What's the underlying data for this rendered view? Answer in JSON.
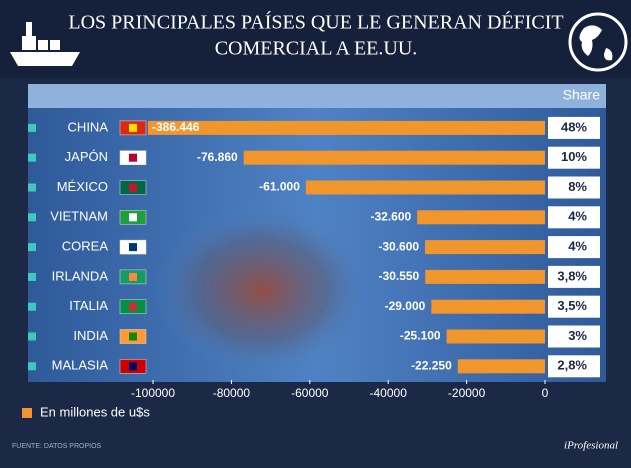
{
  "chart_data": {
    "type": "barh",
    "title_lines": [
      "LOS PRINCIPALES  PAÍSES QUE LE GENERAN DÉFICIT",
      "COMERCIAL A EE.UU."
    ],
    "categories": [
      "CHINA",
      "JAPÓN",
      "MÉXICO",
      "VIETNAM",
      "COREA",
      "IRLANDA",
      "ITALIA",
      "INDIA",
      "MALASIA"
    ],
    "series": [
      {
        "name": "En millones de u$s",
        "color": "#f0962d",
        "values": [
          -386446,
          -76860,
          -61000,
          -32600,
          -30600,
          -30550,
          -29000,
          -25100,
          -22250
        ],
        "value_labels": [
          "-386.446",
          "-76.860",
          "-61.000",
          "-32.600",
          "-30.600",
          "-30.550",
          "-29.000",
          "-25.100",
          "-22.250"
        ]
      }
    ],
    "share": {
      "name": "Share",
      "values": [
        48,
        10,
        8,
        4,
        4,
        3.8,
        3.5,
        3,
        2.8
      ],
      "value_labels": [
        "48%",
        "10%",
        "8%",
        "4%",
        "4%",
        "3,8%",
        "3,5%",
        "3%",
        "2,8%"
      ]
    },
    "xlim": [
      -100000,
      0
    ],
    "xticks": [
      -100000,
      -80000,
      -60000,
      -40000,
      -20000,
      0
    ],
    "source": "FUENTE: DATOS PROPIOS",
    "brand": "iProfesional"
  }
}
